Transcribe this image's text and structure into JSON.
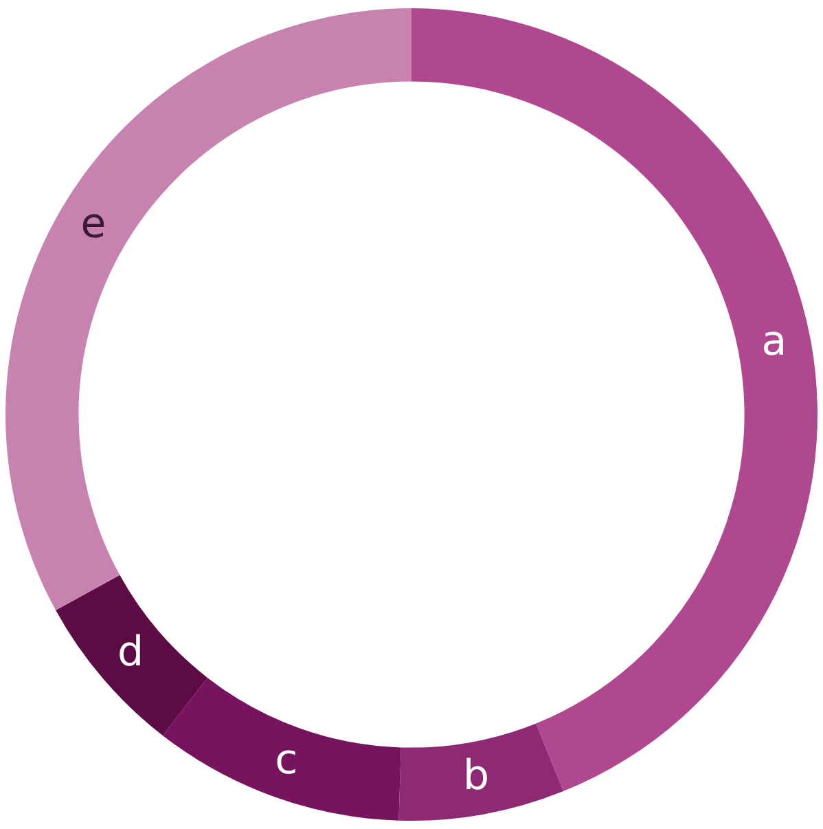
{
  "chart_data": {
    "type": "donut",
    "categories": [
      "a",
      "b",
      "c",
      "d",
      "e"
    ],
    "values": [
      43.9,
      6.6,
      10,
      6.5,
      33
    ],
    "colors": [
      "#b0488f",
      "#8e2a74",
      "#761460",
      "#5c0b45",
      "#c882b0"
    ],
    "legend": false
  }
}
